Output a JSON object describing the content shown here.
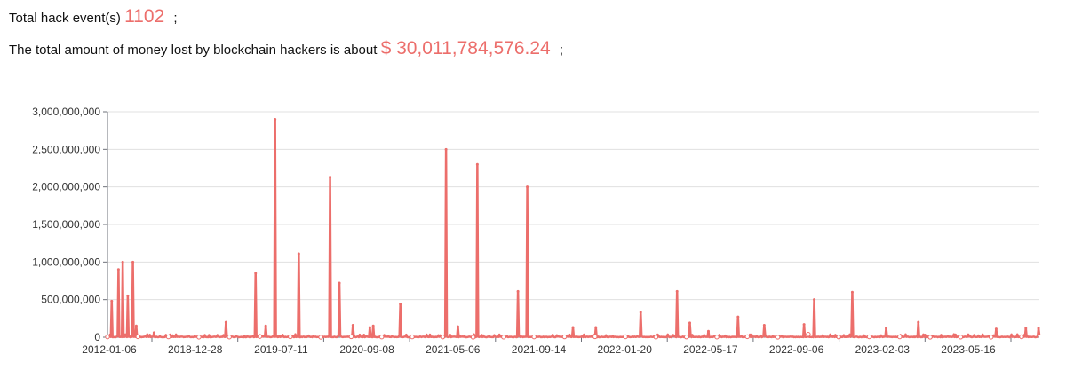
{
  "summary": {
    "events_label": "Total hack event(s)",
    "events_value": "1102",
    "events_sep": ";",
    "money_label": "The total amount of money lost by blockchain hackers is about",
    "money_value": "$ 30,011,784,576.24",
    "money_sep": ";"
  },
  "chart_data": {
    "type": "line",
    "title": "",
    "xlabel": "",
    "ylabel": "",
    "ylim": [
      0,
      3000000000
    ],
    "y_ticks": [
      "0",
      "500,000,000",
      "1,000,000,000",
      "1,500,000,000",
      "2,000,000,000",
      "2,500,000,000",
      "3,000,000,000"
    ],
    "x_tick_labels": [
      "2012-01-06",
      "2018-12-28",
      "2019-07-11",
      "2020-09-08",
      "2021-05-06",
      "2021-09-14",
      "2022-01-20",
      "2022-05-17",
      "2022-09-06",
      "2023-02-03",
      "2023-05-16"
    ],
    "x_points": 1102,
    "grid": true,
    "legend": "none",
    "color": "#ec6e6b",
    "peaks": [
      {
        "index": 5,
        "value": 480000000
      },
      {
        "index": 13,
        "value": 900000000
      },
      {
        "index": 18,
        "value": 1000000000
      },
      {
        "index": 24,
        "value": 550000000
      },
      {
        "index": 30,
        "value": 1000000000
      },
      {
        "index": 34,
        "value": 150000000
      },
      {
        "index": 55,
        "value": 60000000
      },
      {
        "index": 140,
        "value": 200000000
      },
      {
        "index": 175,
        "value": 850000000
      },
      {
        "index": 187,
        "value": 150000000
      },
      {
        "index": 198,
        "value": 2900000000
      },
      {
        "index": 226,
        "value": 1110000000
      },
      {
        "index": 263,
        "value": 2130000000
      },
      {
        "index": 274,
        "value": 720000000
      },
      {
        "index": 290,
        "value": 160000000
      },
      {
        "index": 310,
        "value": 130000000
      },
      {
        "index": 314,
        "value": 150000000
      },
      {
        "index": 346,
        "value": 440000000
      },
      {
        "index": 400,
        "value": 2500000000
      },
      {
        "index": 414,
        "value": 140000000
      },
      {
        "index": 437,
        "value": 2300000000
      },
      {
        "index": 485,
        "value": 610000000
      },
      {
        "index": 496,
        "value": 2000000000
      },
      {
        "index": 550,
        "value": 130000000
      },
      {
        "index": 577,
        "value": 130000000
      },
      {
        "index": 630,
        "value": 330000000
      },
      {
        "index": 673,
        "value": 610000000
      },
      {
        "index": 688,
        "value": 190000000
      },
      {
        "index": 710,
        "value": 80000000
      },
      {
        "index": 745,
        "value": 270000000
      },
      {
        "index": 776,
        "value": 160000000
      },
      {
        "index": 823,
        "value": 170000000
      },
      {
        "index": 835,
        "value": 500000000
      },
      {
        "index": 880,
        "value": 600000000
      },
      {
        "index": 920,
        "value": 120000000
      },
      {
        "index": 958,
        "value": 200000000
      },
      {
        "index": 1050,
        "value": 110000000
      },
      {
        "index": 1085,
        "value": 120000000
      },
      {
        "index": 1100,
        "value": 120000000
      }
    ]
  }
}
